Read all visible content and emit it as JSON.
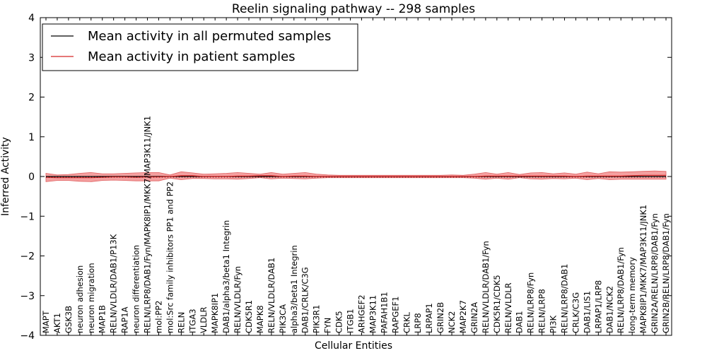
{
  "chart_data": {
    "type": "line",
    "title": "Reelin signaling pathway -- 298 samples",
    "xlabel": "Cellular Entities",
    "ylabel": "Inferred Activity",
    "ylim": [
      -4,
      4
    ],
    "yticks": [
      "−4",
      "−3",
      "−2",
      "−1",
      "0",
      "1",
      "2",
      "3",
      "4"
    ],
    "legend": {
      "position": "top-left",
      "entries": [
        {
          "label": "Mean activity in all permuted samples",
          "color": "#000000"
        },
        {
          "label": "Mean activity in patient samples",
          "color": "#d62728"
        }
      ]
    },
    "categories": [
      "MAPT",
      "AKT1",
      "GSK3B",
      "neuron adhesion",
      "neuron migration",
      "MAP1B",
      "RELN/VLDLR/DAB1/P13K",
      "RAP1A",
      "neuron differentiation",
      "RELN/LRP8/DAB1/Fyn/MAPK8IP1/MKK7/MAP3K11/JNK1",
      "mol:PP2",
      "mol:Src family inhibitors PP1 and PP2",
      "RELN",
      "ITGA3",
      "VLDLR",
      "MAPK8IP1",
      "DAB1/alpha3/beta1 Integrin",
      "RELN/VLDLR/Fyn",
      "CDK5R1",
      "MAPK8",
      "RELN/VLDLR/DAB1",
      "PIK3CA",
      "alpha3/beta1 Integrin",
      "DAB1/CRLK/C3G",
      "PIK3R1",
      "FYN",
      "CDK5",
      "ITGB1",
      "ARHGEF2",
      "MAP3K11",
      "PAFAH1B1",
      "RAPGEF1",
      "CRKL",
      "LRP8",
      "LRPAP1",
      "GRIN2B",
      "NCK2",
      "MAP2K7",
      "GRIN2A",
      "RELN/VLDLR/DAB1/Fyn",
      "CDK5R1/CDK5",
      "RELN/VLDLR",
      "DAB1",
      "RELN/LRP8/Fyn",
      "RELN/LRP8",
      "PI3K",
      "RELN/LRP8/DAB1",
      "CRLK/C3G",
      "DAB1/LIS1",
      "LRPAP1/LRP8",
      "DAB1/NCK2",
      "RELN/LRP8/DAB1/Fyn",
      "long-term memory",
      "MAPK8IP1/MKK7/MAP3K11/JNK1",
      "GRIN2A/RELN/LRP8/DAB1/Fyn",
      "GRIN2B/RELN/LRP8/DAB1/Fyn"
    ],
    "series": [
      {
        "name": "Mean activity in all permuted samples",
        "color": "#000000",
        "values": [
          0,
          0,
          0,
          0,
          0,
          0,
          0,
          0,
          0,
          0,
          0,
          0,
          0,
          0,
          0,
          0,
          0,
          0,
          0,
          0,
          0,
          0,
          0,
          0,
          0,
          0,
          0,
          0,
          0,
          0,
          0,
          0,
          0,
          0,
          0,
          0,
          0,
          0,
          0,
          0,
          0,
          0,
          0,
          0,
          0,
          0,
          0,
          0,
          0,
          0,
          0,
          0,
          0,
          0,
          0,
          0
        ]
      },
      {
        "name": "Mean activity in patient samples",
        "color": "#d62728",
        "values": [
          -0.02,
          -0.03,
          -0.03,
          -0.03,
          -0.03,
          -0.02,
          -0.01,
          -0.01,
          -0.02,
          -0.01,
          -0.01,
          0.0,
          0.02,
          0.02,
          0.0,
          0.0,
          0.0,
          0.01,
          0.01,
          0.02,
          0.02,
          0.0,
          0.01,
          0.01,
          0.0,
          0.0,
          0.0,
          0.0,
          0.0,
          0.0,
          0.0,
          0.0,
          0.0,
          0.0,
          0.0,
          0.0,
          0.0,
          0.0,
          0.0,
          0.01,
          0.01,
          0.01,
          0.01,
          0.01,
          0.01,
          0.01,
          0.01,
          0.0,
          0.01,
          0.01,
          0.01,
          0.01,
          0.02,
          0.03,
          0.03,
          0.03
        ],
        "band_upper": [
          0.08,
          0.04,
          0.05,
          0.08,
          0.1,
          0.07,
          0.07,
          0.08,
          0.09,
          0.1,
          0.1,
          0.04,
          0.12,
          0.09,
          0.06,
          0.07,
          0.08,
          0.1,
          0.08,
          0.06,
          0.1,
          0.06,
          0.08,
          0.1,
          0.06,
          0.04,
          0.03,
          0.03,
          0.03,
          0.03,
          0.03,
          0.03,
          0.03,
          0.03,
          0.03,
          0.03,
          0.04,
          0.03,
          0.06,
          0.1,
          0.06,
          0.1,
          0.05,
          0.09,
          0.1,
          0.07,
          0.09,
          0.06,
          0.11,
          0.07,
          0.12,
          0.11,
          0.12,
          0.13,
          0.14,
          0.13
        ],
        "band_lower": [
          -0.13,
          -0.1,
          -0.1,
          -0.12,
          -0.13,
          -0.1,
          -0.09,
          -0.1,
          -0.11,
          -0.11,
          -0.11,
          -0.04,
          -0.08,
          -0.05,
          -0.05,
          -0.06,
          -0.06,
          -0.07,
          -0.05,
          -0.03,
          -0.06,
          -0.04,
          -0.05,
          -0.06,
          -0.04,
          -0.03,
          -0.03,
          -0.03,
          -0.03,
          -0.03,
          -0.03,
          -0.03,
          -0.03,
          -0.03,
          -0.03,
          -0.03,
          -0.03,
          -0.03,
          -0.04,
          -0.07,
          -0.04,
          -0.07,
          -0.03,
          -0.06,
          -0.07,
          -0.05,
          -0.06,
          -0.04,
          -0.08,
          -0.05,
          -0.08,
          -0.07,
          -0.07,
          -0.07,
          -0.07,
          -0.07
        ]
      }
    ],
    "grid": false
  }
}
